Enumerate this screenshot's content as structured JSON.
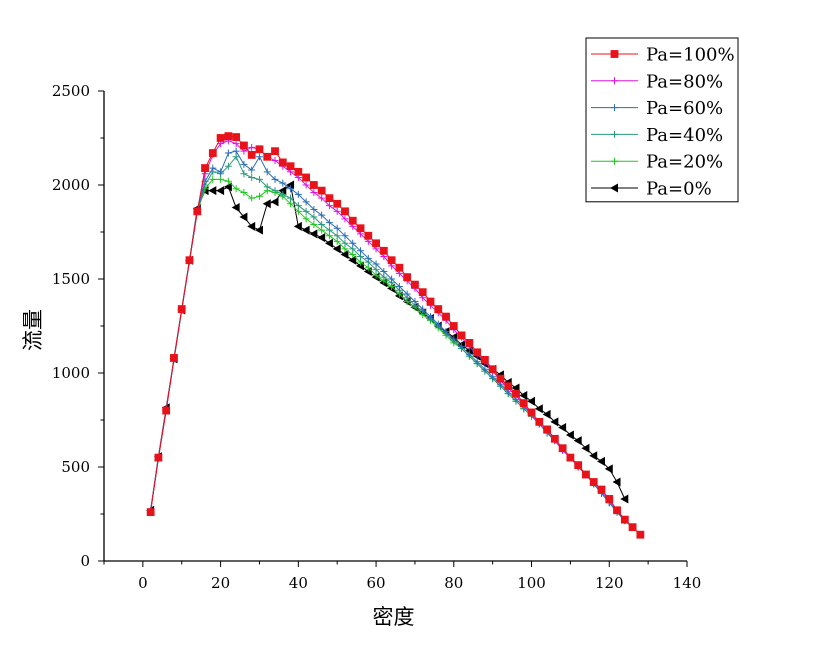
{
  "chart_data": {
    "type": "line",
    "title": "",
    "xlabel": "密度",
    "ylabel": "流量",
    "xlim": [
      -10,
      140
    ],
    "ylim": [
      0,
      2500
    ],
    "xticks": [
      0,
      20,
      40,
      60,
      80,
      100,
      120,
      140
    ],
    "yticks": [
      0,
      500,
      1000,
      1500,
      2000,
      2500
    ],
    "grid": false,
    "legend_position": "top-right",
    "series": [
      {
        "name": "Pa=100%",
        "color": "#e8121a",
        "marker": "square",
        "x": [
          2,
          4,
          6,
          8,
          10,
          12,
          14,
          16,
          18,
          20,
          22,
          24,
          26,
          28,
          30,
          32,
          34,
          36,
          38,
          40,
          42,
          44,
          46,
          48,
          50,
          52,
          54,
          56,
          58,
          60,
          62,
          64,
          66,
          68,
          70,
          72,
          74,
          76,
          78,
          80,
          82,
          84,
          86,
          88,
          90,
          92,
          94,
          96,
          98,
          100,
          102,
          104,
          106,
          108,
          110,
          112,
          114,
          116,
          118,
          120,
          122,
          124,
          126,
          128
        ],
        "y": [
          260,
          550,
          800,
          1080,
          1340,
          1600,
          1860,
          2090,
          2170,
          2250,
          2260,
          2255,
          2210,
          2160,
          2190,
          2150,
          2180,
          2120,
          2100,
          2070,
          2040,
          2000,
          1970,
          1930,
          1900,
          1860,
          1810,
          1770,
          1730,
          1690,
          1650,
          1600,
          1560,
          1510,
          1470,
          1430,
          1380,
          1340,
          1300,
          1250,
          1200,
          1160,
          1110,
          1070,
          1020,
          970,
          930,
          890,
          840,
          790,
          740,
          700,
          650,
          600,
          550,
          510,
          460,
          420,
          380,
          330,
          270,
          220,
          180,
          140
        ]
      },
      {
        "name": "Pa=80%",
        "color": "#e014e0",
        "marker": "plus",
        "x": [
          2,
          4,
          6,
          8,
          10,
          12,
          14,
          16,
          18,
          20,
          22,
          24,
          26,
          28,
          30,
          32,
          34,
          36,
          38,
          40,
          42,
          44,
          46,
          48,
          50,
          52,
          54,
          56,
          58,
          60,
          62,
          64,
          66,
          68,
          70,
          72,
          74,
          76,
          78,
          80,
          82,
          84,
          86,
          88,
          90,
          92,
          94,
          96,
          98,
          100,
          102,
          104,
          106,
          108,
          110,
          112,
          114,
          116,
          118,
          120,
          122,
          124,
          126,
          128
        ],
        "y": [
          265,
          550,
          805,
          1075,
          1340,
          1595,
          1860,
          2060,
          2160,
          2220,
          2235,
          2220,
          2180,
          2200,
          2190,
          2150,
          2130,
          2100,
          2070,
          2040,
          2000,
          1960,
          1930,
          1890,
          1860,
          1820,
          1780,
          1740,
          1700,
          1660,
          1620,
          1570,
          1530,
          1490,
          1450,
          1400,
          1360,
          1320,
          1280,
          1230,
          1190,
          1140,
          1100,
          1060,
          1010,
          960,
          920,
          880,
          830,
          780,
          730,
          690,
          640,
          590,
          550,
          500,
          460,
          420,
          370,
          320,
          270,
          220,
          180,
          140
        ]
      },
      {
        "name": "Pa=60%",
        "color": "#2a6eb5",
        "marker": "plus",
        "x": [
          2,
          4,
          6,
          8,
          10,
          12,
          14,
          16,
          18,
          20,
          22,
          24,
          26,
          28,
          30,
          32,
          34,
          36,
          38,
          40,
          42,
          44,
          46,
          48,
          50,
          52,
          54,
          56,
          58,
          60,
          62,
          64,
          66,
          68,
          70,
          72,
          74,
          76,
          78,
          80,
          82,
          84,
          86,
          88,
          90,
          92,
          94,
          96,
          98,
          100,
          102,
          104,
          106,
          108,
          110,
          112,
          114,
          116,
          118,
          120,
          122,
          124,
          126,
          128
        ],
        "y": [
          265,
          548,
          805,
          1075,
          1335,
          1595,
          1860,
          2020,
          2090,
          2070,
          2170,
          2180,
          2110,
          2080,
          2150,
          2070,
          2030,
          2010,
          1980,
          1950,
          1910,
          1870,
          1840,
          1800,
          1770,
          1730,
          1690,
          1650,
          1610,
          1580,
          1540,
          1500,
          1460,
          1420,
          1380,
          1340,
          1300,
          1260,
          1220,
          1180,
          1140,
          1100,
          1060,
          1020,
          980,
          940,
          900,
          860,
          820,
          780,
          730,
          690,
          640,
          590,
          550,
          500,
          460,
          410,
          360,
          310,
          260,
          215,
          180,
          140
        ]
      },
      {
        "name": "Pa=40%",
        "color": "#2a9a7a",
        "marker": "plus",
        "x": [
          2,
          4,
          6,
          8,
          10,
          12,
          14,
          16,
          18,
          20,
          22,
          24,
          26,
          28,
          30,
          32,
          34,
          36,
          38,
          40,
          42,
          44,
          46,
          48,
          50,
          52,
          54,
          56,
          58,
          60,
          62,
          64,
          66,
          68,
          70,
          72,
          74,
          76,
          78,
          80,
          82,
          84,
          86,
          88,
          90,
          92,
          94,
          96,
          98,
          100,
          102,
          104,
          106,
          108,
          110,
          112,
          114,
          116,
          118,
          120,
          122,
          124,
          126,
          128
        ],
        "y": [
          268,
          548,
          805,
          1072,
          1335,
          1595,
          1860,
          2000,
          2070,
          2060,
          2100,
          2150,
          2060,
          2040,
          2030,
          1990,
          1970,
          1950,
          1930,
          1890,
          1860,
          1830,
          1790,
          1760,
          1730,
          1690,
          1660,
          1620,
          1590,
          1550,
          1510,
          1480,
          1440,
          1400,
          1360,
          1330,
          1290,
          1250,
          1210,
          1170,
          1130,
          1090,
          1050,
          1010,
          970,
          930,
          890,
          850,
          810,
          770,
          730,
          680,
          640,
          590,
          550,
          500,
          460,
          410,
          360,
          310,
          260,
          215,
          180,
          140
        ]
      },
      {
        "name": "Pa=20%",
        "color": "#1ec81e",
        "marker": "plus",
        "x": [
          2,
          4,
          6,
          8,
          10,
          12,
          14,
          16,
          18,
          20,
          22,
          24,
          26,
          28,
          30,
          32,
          34,
          36,
          38,
          40,
          42,
          44,
          46,
          48,
          50,
          52,
          54,
          56,
          58,
          60,
          62,
          64,
          66,
          68,
          70,
          72,
          74,
          76,
          78,
          80,
          82,
          84,
          86,
          88,
          90,
          92,
          94,
          96,
          98,
          100,
          102,
          104,
          106,
          108,
          110,
          112,
          114,
          116,
          118,
          120,
          122,
          124,
          126,
          128
        ],
        "y": [
          268,
          546,
          805,
          1070,
          1333,
          1595,
          1860,
          1980,
          2030,
          2030,
          2020,
          1980,
          1960,
          1930,
          1940,
          1970,
          1960,
          1940,
          1900,
          1860,
          1820,
          1790,
          1760,
          1730,
          1700,
          1660,
          1630,
          1590,
          1560,
          1520,
          1490,
          1460,
          1420,
          1380,
          1350,
          1310,
          1280,
          1240,
          1200,
          1160,
          1130,
          1090,
          1050,
          1010,
          970,
          930,
          890,
          850,
          810,
          770,
          730,
          680,
          640,
          590,
          550,
          500,
          460,
          410,
          360,
          310,
          260,
          215,
          180,
          140
        ]
      },
      {
        "name": "Pa=0%",
        "color": "#000000",
        "marker": "triangle-left",
        "x": [
          2,
          4,
          6,
          8,
          10,
          12,
          14,
          16,
          18,
          20,
          22,
          24,
          26,
          28,
          30,
          32,
          34,
          36,
          38,
          40,
          42,
          44,
          46,
          48,
          50,
          52,
          54,
          56,
          58,
          60,
          62,
          64,
          66,
          68,
          70,
          72,
          74,
          76,
          78,
          80,
          82,
          84,
          86,
          88,
          90,
          92,
          94,
          96,
          98,
          100,
          102,
          104,
          106,
          108,
          110,
          112,
          114,
          116,
          118,
          120,
          122,
          124
        ],
        "y": [
          270,
          555,
          815,
          1075,
          1335,
          1600,
          1875,
          1970,
          1970,
          1970,
          1990,
          1880,
          1830,
          1780,
          1760,
          1900,
          1910,
          1970,
          2000,
          1780,
          1760,
          1740,
          1720,
          1690,
          1660,
          1630,
          1600,
          1570,
          1540,
          1510,
          1480,
          1450,
          1410,
          1380,
          1350,
          1320,
          1290,
          1250,
          1220,
          1190,
          1150,
          1120,
          1090,
          1050,
          1020,
          990,
          950,
          920,
          880,
          850,
          810,
          780,
          740,
          710,
          670,
          640,
          600,
          560,
          530,
          490,
          420,
          330
        ]
      }
    ]
  }
}
